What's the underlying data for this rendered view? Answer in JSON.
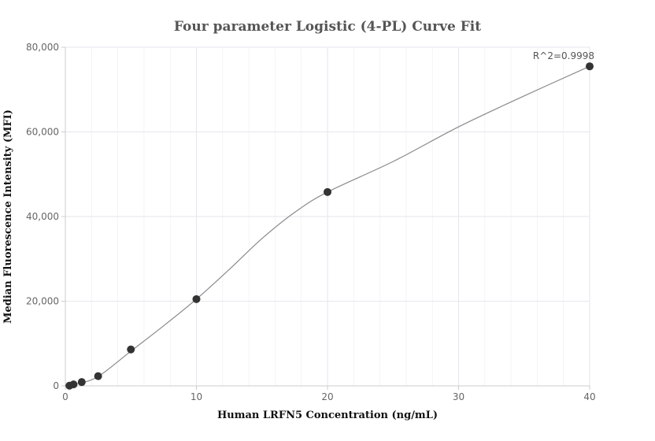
{
  "chart_data": {
    "type": "scatter",
    "title": "Four parameter Logistic (4-PL) Curve Fit",
    "xlabel": "Human LRFN5 Concentration (ng/mL)",
    "ylabel": "Median Fluorescence Intensity (MFI)",
    "xlim": [
      0,
      40
    ],
    "ylim": [
      0,
      80000
    ],
    "x_ticks": [
      0,
      10,
      20,
      30,
      40
    ],
    "y_ticks": [
      0,
      20000,
      40000,
      60000,
      80000
    ],
    "x_tick_labels": [
      "0",
      "10",
      "20",
      "30",
      "40"
    ],
    "y_tick_labels": [
      "0",
      "20,000",
      "40,000",
      "60,000",
      "80,000"
    ],
    "grid": true,
    "series": [
      {
        "points": [
          {
            "x": 0.3125,
            "y": 50
          },
          {
            "x": 0.625,
            "y": 350
          },
          {
            "x": 1.25,
            "y": 900
          },
          {
            "x": 2.5,
            "y": 2300
          },
          {
            "x": 5,
            "y": 8600
          },
          {
            "x": 10,
            "y": 20500
          },
          {
            "x": 20,
            "y": 45800
          },
          {
            "x": 40,
            "y": 75500
          }
        ]
      }
    ],
    "fit_curve": [
      [
        0,
        0
      ],
      [
        1,
        600
      ],
      [
        2.5,
        2200
      ],
      [
        5,
        8200
      ],
      [
        7.5,
        14200
      ],
      [
        10,
        20500
      ],
      [
        12.5,
        27500
      ],
      [
        15,
        34800
      ],
      [
        17.5,
        41000
      ],
      [
        20,
        45800
      ],
      [
        25,
        53000
      ],
      [
        30,
        61200
      ],
      [
        35,
        68500
      ],
      [
        40,
        75500
      ]
    ],
    "annotations": [
      {
        "text": "R^2=0.9998",
        "x": 40,
        "y": 75500
      }
    ],
    "colors": {
      "point": "#333333",
      "curve": "#8a8a8a",
      "grid": "#e6e6ee",
      "axis": "#cccccc"
    }
  }
}
